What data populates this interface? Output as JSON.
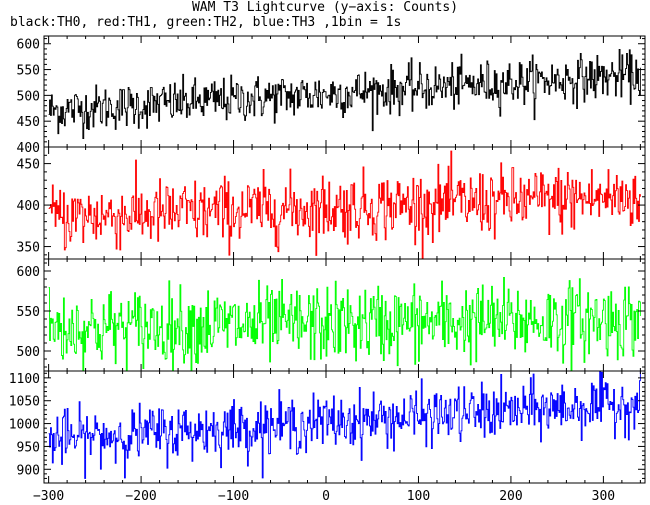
{
  "title": "WAM T3 Lightcurve (y−axis: Counts)",
  "subtitle": "black:TH0, red:TH1, green:TH2, blue:TH3 ,1bin = 1s",
  "chart_data": [
    {
      "type": "line",
      "name": "TH0",
      "color": "#000000",
      "x_range": [
        -300,
        340
      ],
      "ylim": [
        400,
        615
      ],
      "yticks": [
        400,
        450,
        500,
        550,
        600
      ],
      "baseline_start": 470,
      "baseline_end": 540,
      "noise_amplitude": 22,
      "values_approx": "counts fluctuating ~450-500 at t=-300, rising to ~520-560 at t=340; spikes to ~600 near t=300"
    },
    {
      "type": "line",
      "name": "TH1",
      "color": "#ff0000",
      "x_range": [
        -300,
        340
      ],
      "ylim": [
        335,
        470
      ],
      "yticks": [
        350,
        400,
        450
      ],
      "baseline_start": 385,
      "baseline_end": 410,
      "noise_amplitude": 20,
      "values_approx": "counts fluctuating ~360-420, slight upward trend to ~400-430 near end"
    },
    {
      "type": "line",
      "name": "TH2",
      "color": "#00ff00",
      "x_range": [
        -300,
        340
      ],
      "ylim": [
        475,
        615
      ],
      "yticks": [
        500,
        550,
        600
      ],
      "baseline_start": 528,
      "baseline_end": 540,
      "noise_amplitude": 24,
      "values_approx": "counts fluctuating ~500-570 across full range, roughly flat"
    },
    {
      "type": "line",
      "name": "TH3",
      "color": "#0000ff",
      "x_range": [
        -300,
        340
      ],
      "ylim": [
        870,
        1115
      ],
      "yticks": [
        900,
        950,
        1000,
        1050,
        1100
      ],
      "baseline_start": 965,
      "baseline_end": 1045,
      "noise_amplitude": 30,
      "values_approx": "counts ~940-1000 at t=-300 rising to ~1020-1070 at t=340"
    }
  ],
  "x_axis": {
    "range": [
      -305,
      345
    ],
    "ticks": [
      -300,
      -200,
      -100,
      0,
      100,
      200,
      300
    ],
    "tick_labels": [
      "−300",
      "−200",
      "−100",
      "0",
      "100",
      "200",
      "300"
    ]
  }
}
